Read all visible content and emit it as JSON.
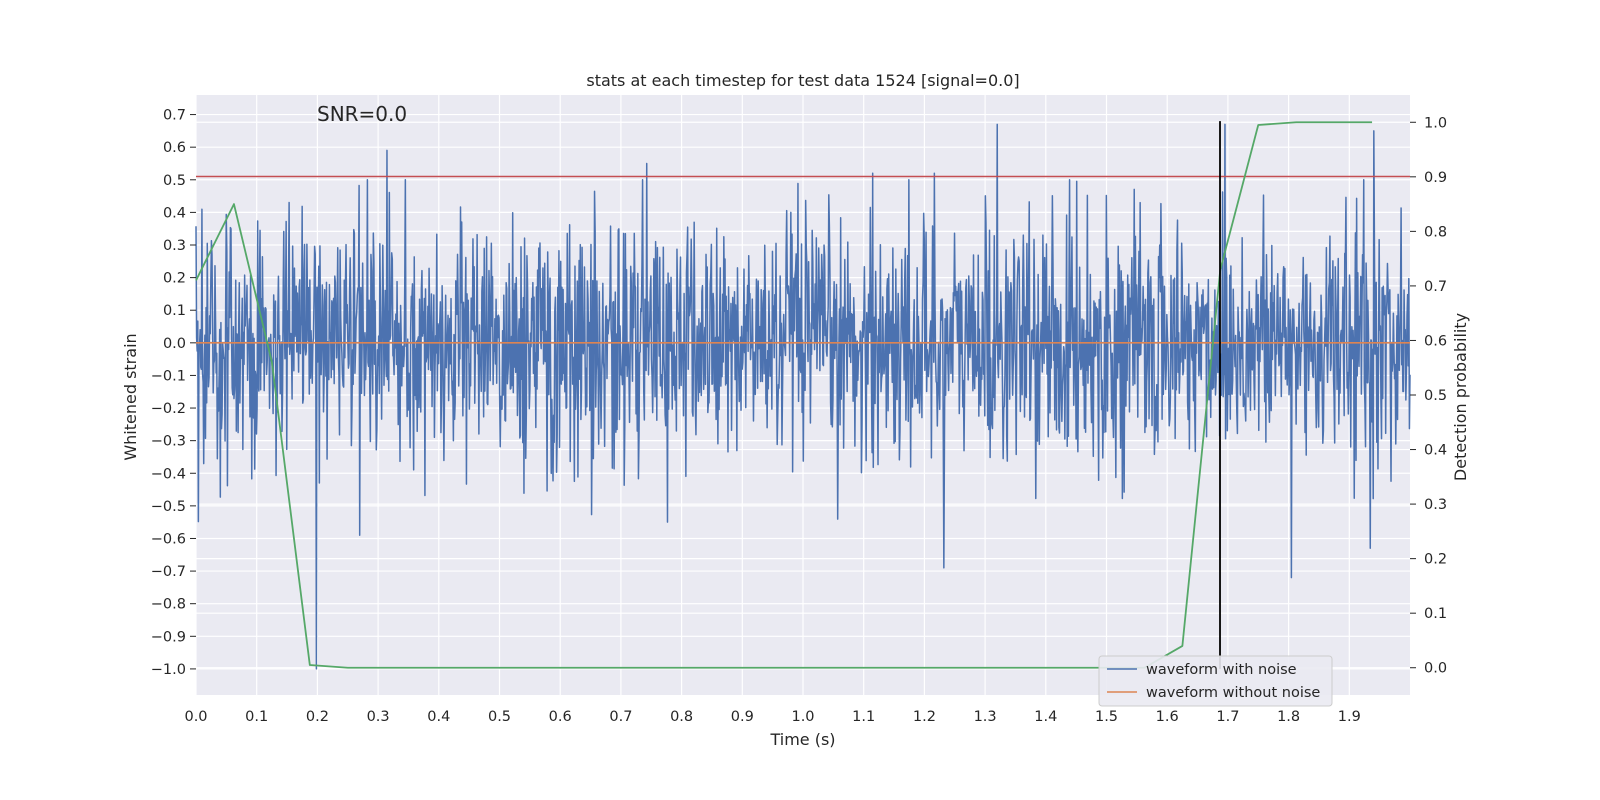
{
  "chart_data": {
    "type": "line",
    "title": "stats at each timestep for test data 1524 [signal=0.0]",
    "annotation": "SNR=0.0",
    "xlabel": "Time (s)",
    "ylabel": "Whitened strain",
    "ylabel_right": "Detection probability",
    "xlim": [
      0.0,
      2.0
    ],
    "ylim": [
      -1.08,
      0.76
    ],
    "ylim_right": [
      -0.05,
      1.05
    ],
    "x_ticks": [
      "0.0",
      "0.1",
      "0.2",
      "0.3",
      "0.4",
      "0.5",
      "0.6",
      "0.7",
      "0.8",
      "0.9",
      "1.0",
      "1.1",
      "1.2",
      "1.3",
      "1.4",
      "1.5",
      "1.6",
      "1.7",
      "1.8",
      "1.9"
    ],
    "y_ticks": [
      "0.7",
      "0.6",
      "0.5",
      "0.4",
      "0.3",
      "0.2",
      "0.1",
      "0.0",
      "−0.1",
      "−0.2",
      "−0.3",
      "−0.4",
      "−0.5",
      "−0.6",
      "−0.7",
      "−0.8",
      "−0.9",
      "−1.0"
    ],
    "y_ticks_right": [
      "1.0",
      "0.9",
      "0.8",
      "0.7",
      "0.6",
      "0.5",
      "0.4",
      "0.3",
      "0.2",
      "0.1",
      "0.0"
    ],
    "grid": true,
    "legend_position": "lower-right",
    "threshold_line": {
      "y": 0.51,
      "color": "#c44e52"
    },
    "vertical_marker": {
      "x": 1.687,
      "y_range": [
        -1.0,
        0.68
      ],
      "color": "#000000"
    },
    "series": [
      {
        "name": "waveform with noise",
        "axis": "left",
        "color": "#4c72b0",
        "kind": "noise",
        "x_range": [
          0.0,
          2.0
        ],
        "std": 0.18,
        "n_points": 2048,
        "notable_peaks": [
          {
            "x": 0.315,
            "y": 0.59
          },
          {
            "x": 0.743,
            "y": 0.55
          },
          {
            "x": 1.115,
            "y": 0.52
          },
          {
            "x": 1.216,
            "y": 0.52
          },
          {
            "x": 1.32,
            "y": 0.67
          },
          {
            "x": 1.695,
            "y": 0.67
          },
          {
            "x": 1.94,
            "y": 0.65
          },
          {
            "x": 0.198,
            "y": -1.0
          },
          {
            "x": 1.232,
            "y": -0.69
          },
          {
            "x": 1.805,
            "y": -0.72
          },
          {
            "x": 1.935,
            "y": -0.63
          },
          {
            "x": 0.27,
            "y": -0.59
          }
        ]
      },
      {
        "name": "waveform without noise",
        "axis": "left",
        "color": "#dd8452",
        "x": [
          0.0,
          2.0
        ],
        "y": [
          0.0,
          0.0
        ]
      },
      {
        "name": "",
        "axis": "right",
        "color": "#55a868",
        "x": [
          0.0,
          0.0625,
          0.125,
          0.1875,
          0.25,
          1.5625,
          1.625,
          1.6875,
          1.75,
          1.8125,
          1.9375
        ],
        "y": [
          0.71,
          0.85,
          0.56,
          0.005,
          0.0,
          0.0,
          0.04,
          0.73,
          0.995,
          1.0,
          1.0
        ]
      }
    ]
  }
}
